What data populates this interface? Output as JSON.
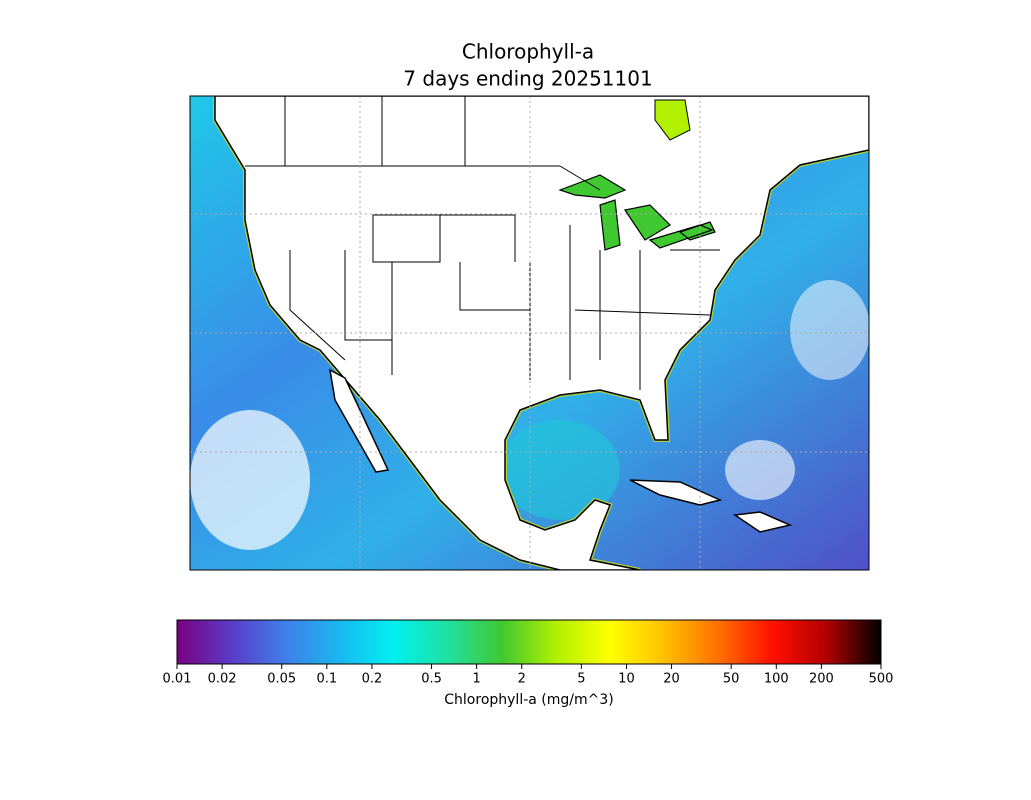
{
  "title": "Chlorophyll-a",
  "subtitle": "7 days ending 20251101",
  "colorbar": {
    "label": "Chlorophyll-a (mg/m^3)",
    "scale": "log",
    "lim": [
      0.01,
      500
    ],
    "ticks": [
      0.01,
      0.02,
      0.05,
      0.1,
      0.2,
      0.5,
      1,
      2,
      5,
      10,
      20,
      50,
      100,
      200,
      500
    ],
    "colors": [
      "#7a0080",
      "#5a3cc8",
      "#3f7fe8",
      "#19b8f0",
      "#00f0f0",
      "#20e0a0",
      "#40c830",
      "#b0f000",
      "#ffff00",
      "#ffc000",
      "#ff7000",
      "#ff1000",
      "#b00000",
      "#000000"
    ]
  }
}
